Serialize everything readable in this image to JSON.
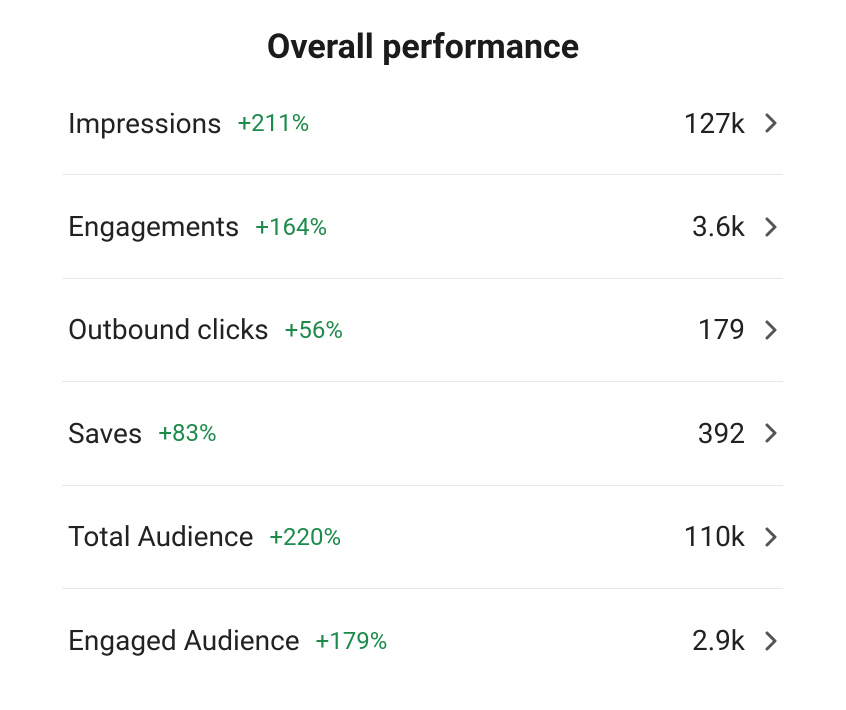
{
  "header": {
    "title": "Overall performance"
  },
  "rows": [
    {
      "label": "Impressions",
      "change": "+211%",
      "value": "127k"
    },
    {
      "label": "Engagements",
      "change": "+164%",
      "value": "3.6k"
    },
    {
      "label": "Outbound clicks",
      "change": "+56%",
      "value": "179"
    },
    {
      "label": "Saves",
      "change": "+83%",
      "value": "392"
    },
    {
      "label": "Total Audience",
      "change": "+220%",
      "value": "110k"
    },
    {
      "label": "Engaged Audience",
      "change": "+179%",
      "value": "2.9k"
    }
  ]
}
